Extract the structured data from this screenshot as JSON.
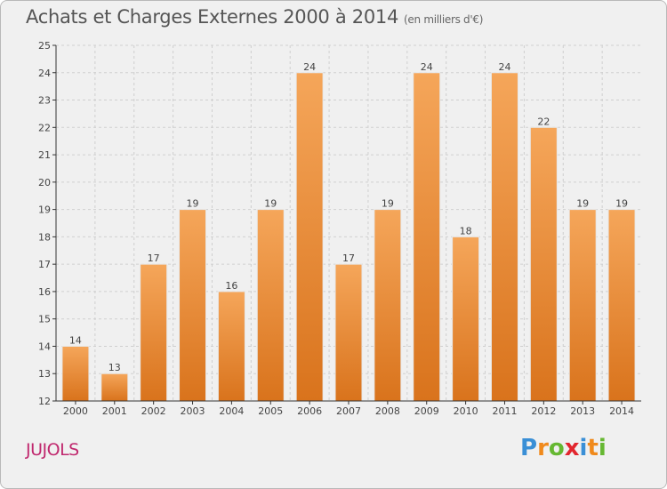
{
  "title": "Achats et Charges Externes 2000 à 2014",
  "subtitle": "(en milliers d'€)",
  "commune": "JUJOLS",
  "logo": {
    "letters": [
      "P",
      "r",
      "o",
      "x",
      "i",
      "t",
      "i"
    ],
    "colors": [
      "#3a8fd6",
      "#f08a1c",
      "#66b832",
      "#e2262e",
      "#3a8fd6",
      "#f08a1c",
      "#66b832"
    ]
  },
  "colors": {
    "bar_top": "#f5a65a",
    "bar_bottom": "#d9731c",
    "bar_stroke": "#e8e8e8",
    "grid": "#cfcfcf",
    "axis": "#333333",
    "text": "#444444"
  },
  "chart_data": {
    "type": "bar",
    "categories": [
      "2000",
      "2001",
      "2002",
      "2003",
      "2004",
      "2005",
      "2006",
      "2007",
      "2008",
      "2009",
      "2010",
      "2011",
      "2012",
      "2013",
      "2014"
    ],
    "values": [
      14,
      13,
      17,
      19,
      16,
      19,
      24,
      17,
      19,
      24,
      18,
      24,
      22,
      19,
      19
    ],
    "ylim": [
      12,
      25
    ],
    "yticks": [
      12,
      13,
      14,
      15,
      16,
      17,
      18,
      19,
      20,
      21,
      22,
      23,
      24,
      25
    ],
    "grid": true,
    "data_labels": true
  }
}
